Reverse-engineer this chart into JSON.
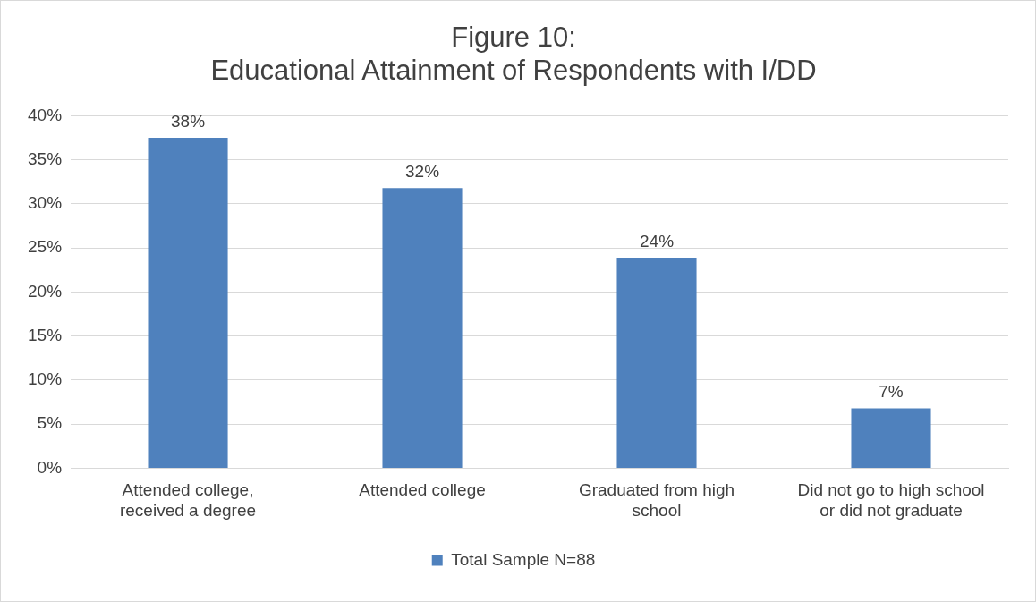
{
  "chart_data": {
    "type": "bar",
    "title": "Figure 10:\nEducational Attainment of Respondents with I/DD",
    "categories": [
      "Attended college,\nreceived a degree",
      "Attended college",
      "Graduated from high\nschool",
      "Did not go to high school\nor did not graduate"
    ],
    "series": [
      {
        "name": "Total Sample N=88",
        "color": "#4f81bd",
        "values": [
          37.5,
          31.8,
          23.9,
          6.8
        ],
        "value_labels": [
          "38%",
          "32%",
          "24%",
          "7%"
        ]
      }
    ],
    "ylim": [
      0,
      40
    ],
    "yticks": [
      {
        "value": 0,
        "label": "0%"
      },
      {
        "value": 5,
        "label": "5%"
      },
      {
        "value": 10,
        "label": "10%"
      },
      {
        "value": 15,
        "label": "15%"
      },
      {
        "value": 20,
        "label": "20%"
      },
      {
        "value": 25,
        "label": "25%"
      },
      {
        "value": 30,
        "label": "30%"
      },
      {
        "value": 35,
        "label": "35%"
      },
      {
        "value": 40,
        "label": "40%"
      }
    ],
    "grid": "y",
    "legend": "bottom"
  }
}
